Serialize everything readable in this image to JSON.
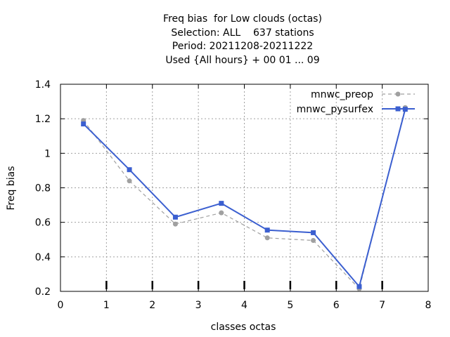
{
  "chart_data": {
    "type": "line",
    "title_lines": [
      "Freq bias  for Low clouds (octas)",
      "Selection: ALL    637 stations",
      "Period: 20211208-20211222",
      "Used {All hours} + 00 01 ... 09"
    ],
    "xlabel": "classes octas",
    "ylabel": "Freq bias",
    "xlim": [
      0,
      8
    ],
    "ylim": [
      0.2,
      1.4
    ],
    "xticks": [
      0,
      1,
      2,
      3,
      4,
      5,
      6,
      7,
      8
    ],
    "yticks": [
      0.2,
      0.4,
      0.6,
      0.8,
      1,
      1.2,
      1.4
    ],
    "xtick_labels": [
      "0",
      "1",
      "2",
      "3",
      "4",
      "5",
      "6",
      "7",
      "8"
    ],
    "ytick_labels": [
      "0.2",
      "0.4",
      "0.6",
      "0.8",
      "1",
      "1.2",
      "1.4"
    ],
    "grid": true,
    "legend_position": "top-right",
    "x": [
      0.5,
      1.5,
      2.5,
      3.5,
      4.5,
      5.5,
      6.5,
      7.5
    ],
    "series": [
      {
        "name": "mnwc_preop",
        "values": [
          1.19,
          0.84,
          0.59,
          0.655,
          0.51,
          0.495,
          0.215,
          1.265
        ],
        "color": "#a0a0a0",
        "dashed": true
      },
      {
        "name": "mnwc_pysurfex",
        "values": [
          1.17,
          0.905,
          0.63,
          0.71,
          0.555,
          0.54,
          0.228,
          1.255
        ],
        "color": "#3b5fd0",
        "dashed": false
      }
    ],
    "bottom_marker_x": [
      1,
      2,
      3,
      4,
      5,
      6,
      7
    ]
  }
}
